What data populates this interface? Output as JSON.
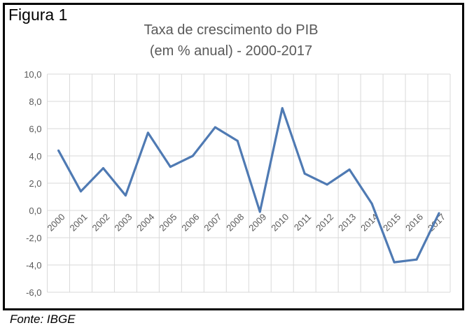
{
  "figure_label": "Figura 1",
  "source": "Fonte: IBGE",
  "chart_data": {
    "type": "line",
    "title": "Taxa de crescimento do PIB",
    "subtitle": "(em % anual) - 2000-2017",
    "xlabel": "",
    "ylabel": "",
    "categories": [
      "2000",
      "2001",
      "2002",
      "2003",
      "2004",
      "2005",
      "2006",
      "2007",
      "2008",
      "2009",
      "2010",
      "2011",
      "2012",
      "2013",
      "2014",
      "2015",
      "2016",
      "2017"
    ],
    "series": [
      {
        "values": [
          4.4,
          1.4,
          3.1,
          1.1,
          5.7,
          3.2,
          4.0,
          6.1,
          5.1,
          -0.1,
          7.5,
          2.7,
          1.9,
          3.0,
          0.5,
          -3.8,
          -3.6,
          -0.2
        ]
      }
    ],
    "ylim": [
      -6,
      10
    ],
    "yticks": [
      "10,0",
      "8,0",
      "6,0",
      "4,0",
      "2,0",
      "0,0",
      "-2,0",
      "-4,0",
      "-6,0"
    ],
    "grid": true,
    "line_color": "#4f7ab3",
    "grid_color": "#d9d9d9"
  }
}
